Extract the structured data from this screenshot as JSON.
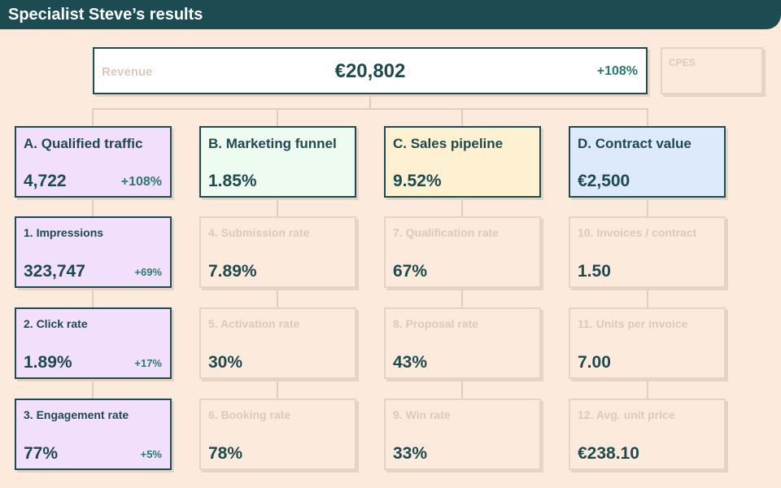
{
  "header": {
    "title": "Specialist Steve’s results"
  },
  "revenue": {
    "label": "Revenue",
    "value": "€20,802",
    "delta": "+108%"
  },
  "cpes": {
    "label": "CPES"
  },
  "categories": [
    {
      "label": "A. Qualified traffic",
      "value": "4,722",
      "delta": "+108%",
      "color": "#f2dffb"
    },
    {
      "label": "B. Marketing funnel",
      "value": "1.85%",
      "delta": "",
      "color": "#eefbf0"
    },
    {
      "label": "C. Sales pipeline",
      "value": "9.52%",
      "delta": "",
      "color": "#fdf1d1"
    },
    {
      "label": "D. Contract value",
      "value": "€2,500",
      "delta": "",
      "color": "#dceafb"
    }
  ],
  "metrics": [
    {
      "label": "1. Impressions",
      "value": "323,747",
      "delta": "+69%"
    },
    {
      "label": "2. Click rate",
      "value": "1.89%",
      "delta": "+17%"
    },
    {
      "label": "3. Engagement rate",
      "value": "77%",
      "delta": "+5%"
    },
    {
      "label": "4. Submission rate",
      "value": "7.89%",
      "delta": ""
    },
    {
      "label": "5. Activation rate",
      "value": "30%",
      "delta": ""
    },
    {
      "label": "6. Booking rate",
      "value": "78%",
      "delta": ""
    },
    {
      "label": "7. Qualification rate",
      "value": "67%",
      "delta": ""
    },
    {
      "label": "8. Proposal rate",
      "value": "43%",
      "delta": ""
    },
    {
      "label": "9. Win rate",
      "value": "33%",
      "delta": ""
    },
    {
      "label": "10. Invoices / contract",
      "value": "1.50",
      "delta": ""
    },
    {
      "label": "11. Units per invoice",
      "value": "7.00",
      "delta": ""
    },
    {
      "label": "12. Avg. unit price",
      "value": "€238.10",
      "delta": ""
    }
  ],
  "colors": {
    "background": "#fcebdc",
    "header": "#1d4b52",
    "text": "#1d4a4f",
    "positive": "#2c7a6e",
    "muted": "#d9cabb",
    "connector": "#ddcebf",
    "active_fill": "#f2dffb"
  }
}
